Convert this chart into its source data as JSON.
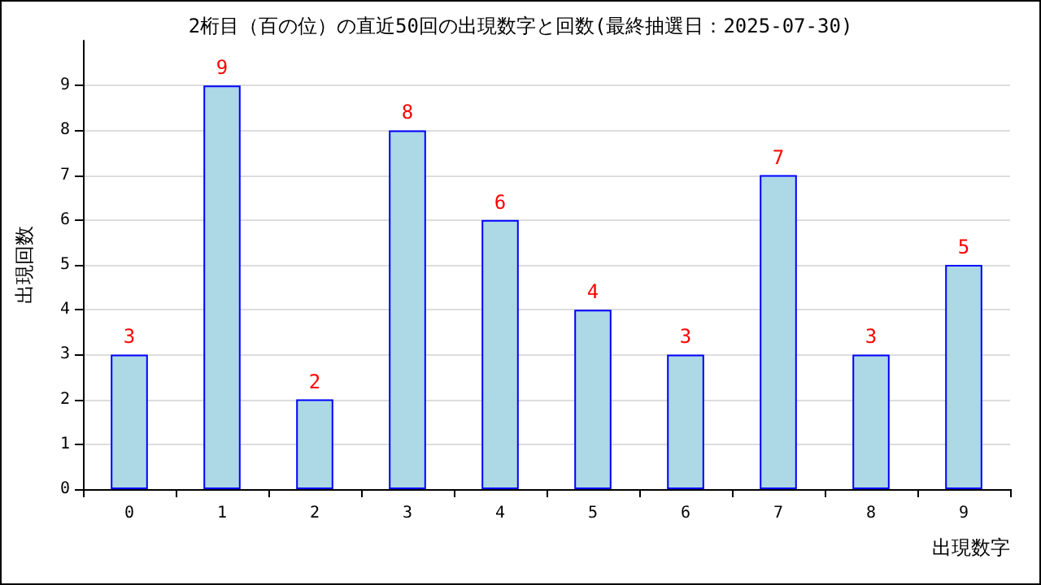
{
  "chart_data": {
    "type": "bar",
    "title": "2桁目（百の位）の直近50回の出現数字と回数(最終抽選日：2025-07-30)",
    "xlabel": "出現数字",
    "ylabel": "出現回数",
    "categories": [
      "0",
      "1",
      "2",
      "3",
      "4",
      "5",
      "6",
      "7",
      "8",
      "9"
    ],
    "values": [
      3,
      9,
      2,
      8,
      6,
      4,
      3,
      7,
      3,
      5
    ],
    "color": "#add8e6",
    "ylim": [
      0,
      10
    ],
    "yticks": [
      0,
      1,
      2,
      3,
      4,
      5,
      6,
      7,
      8,
      9
    ],
    "grid": "y",
    "data_labels": true
  }
}
